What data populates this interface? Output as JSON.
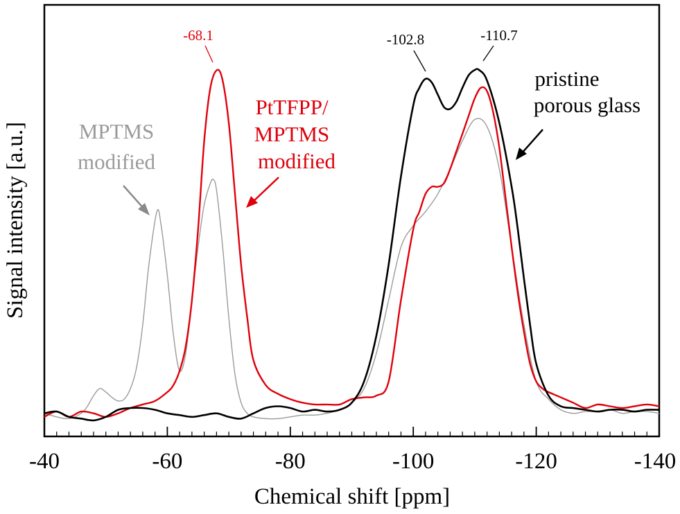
{
  "chart_data": {
    "type": "line",
    "xlabel": "Chemical shift [ppm]",
    "ylabel": "Signal intensity [a.u.]",
    "xlim": [
      -40,
      -140
    ],
    "ylim": [
      0,
      1.05
    ],
    "x_ticks": [
      "-40",
      "-60",
      "-80",
      "-100",
      "-120",
      "-140"
    ],
    "x_tick_values": [
      -40,
      -60,
      -80,
      -100,
      -120,
      -140
    ],
    "minor_tick_step": 2,
    "grid": false,
    "series": [
      {
        "name": "pristine porous glass",
        "color": "#000000",
        "x": [
          -40,
          -42,
          -44,
          -46,
          -48,
          -50,
          -52,
          -54,
          -56,
          -58,
          -60,
          -62,
          -64,
          -66,
          -68,
          -70,
          -72,
          -74,
          -76,
          -78,
          -80,
          -82,
          -84,
          -86,
          -88,
          -90,
          -92,
          -94,
          -96,
          -98,
          -100,
          -101,
          -102,
          -103,
          -104,
          -105,
          -106,
          -107,
          -108,
          -109,
          -110,
          -110.7,
          -112,
          -114,
          -116,
          -117,
          -118,
          -119,
          -120,
          -122,
          -124,
          -126,
          -128,
          -130,
          -132,
          -134,
          -136,
          -138,
          -140
        ],
        "values": [
          0.03,
          0.035,
          0.02,
          0.015,
          0.01,
          0.02,
          0.04,
          0.045,
          0.045,
          0.04,
          0.03,
          0.025,
          0.02,
          0.025,
          0.03,
          0.02,
          0.015,
          0.03,
          0.045,
          0.05,
          0.045,
          0.035,
          0.04,
          0.035,
          0.04,
          0.06,
          0.12,
          0.25,
          0.45,
          0.7,
          0.9,
          0.95,
          0.975,
          0.965,
          0.93,
          0.895,
          0.89,
          0.91,
          0.95,
          0.985,
          1.0,
          1.0,
          0.97,
          0.85,
          0.67,
          0.55,
          0.41,
          0.28,
          0.17,
          0.08,
          0.05,
          0.045,
          0.04,
          0.035,
          0.04,
          0.04,
          0.035,
          0.04,
          0.04
        ]
      },
      {
        "name": "PtTFPP/ MPTMS modified",
        "color": "#e0000b",
        "x": [
          -40,
          -42,
          -44,
          -46,
          -48,
          -50,
          -52,
          -54,
          -56,
          -58,
          -60,
          -61,
          -62,
          -63,
          -64,
          -65,
          -66,
          -67,
          -68.1,
          -69,
          -70,
          -71,
          -72,
          -73,
          -74,
          -76,
          -78,
          -80,
          -82,
          -84,
          -86,
          -88,
          -90,
          -92,
          -94,
          -96,
          -98,
          -100,
          -101,
          -102,
          -103,
          -104,
          -105,
          -106,
          -107,
          -108,
          -109,
          -110,
          -111,
          -112,
          -113,
          -114,
          -115,
          -116,
          -117,
          -118,
          -119,
          -120,
          -121,
          -122,
          -124,
          -126,
          -128,
          -130,
          -132,
          -134,
          -136,
          -138,
          -140
        ],
        "values": [
          0.02,
          0.035,
          0.02,
          0.035,
          0.03,
          0.02,
          0.03,
          0.045,
          0.055,
          0.065,
          0.09,
          0.11,
          0.15,
          0.22,
          0.35,
          0.55,
          0.8,
          0.95,
          1.0,
          0.97,
          0.85,
          0.65,
          0.45,
          0.3,
          0.18,
          0.11,
          0.085,
          0.07,
          0.06,
          0.055,
          0.055,
          0.055,
          0.07,
          0.075,
          0.08,
          0.12,
          0.35,
          0.55,
          0.6,
          0.65,
          0.67,
          0.67,
          0.68,
          0.72,
          0.77,
          0.82,
          0.87,
          0.92,
          0.95,
          0.94,
          0.88,
          0.78,
          0.64,
          0.5,
          0.37,
          0.26,
          0.17,
          0.12,
          0.1,
          0.09,
          0.075,
          0.06,
          0.045,
          0.055,
          0.05,
          0.045,
          0.05,
          0.055,
          0.05
        ]
      },
      {
        "name": "MPTMS modified",
        "color": "#9a9a9a",
        "x": [
          -40,
          -42,
          -44,
          -46,
          -47,
          -48,
          -49,
          -50,
          -51,
          -52,
          -53,
          -54,
          -55,
          -56,
          -57,
          -58.3,
          -59,
          -60,
          -61,
          -62,
          -63,
          -64,
          -65,
          -66,
          -67,
          -67.5,
          -68,
          -69,
          -70,
          -71,
          -72,
          -73,
          -74,
          -76,
          -78,
          -80,
          -82,
          -84,
          -86,
          -88,
          -90,
          -92,
          -94,
          -96,
          -98,
          -100,
          -102,
          -104,
          -106,
          -108,
          -110,
          -112,
          -114,
          -116,
          -118,
          -120,
          -122,
          -124,
          -126,
          -128,
          -130,
          -132,
          -134,
          -136,
          -138,
          -140
        ],
        "values": [
          0.03,
          0.02,
          0.015,
          0.03,
          0.05,
          0.08,
          0.1,
          0.09,
          0.075,
          0.065,
          0.07,
          0.1,
          0.16,
          0.28,
          0.45,
          0.6,
          0.56,
          0.42,
          0.25,
          0.15,
          0.2,
          0.35,
          0.5,
          0.62,
          0.68,
          0.69,
          0.66,
          0.5,
          0.3,
          0.14,
          0.06,
          0.03,
          0.02,
          0.015,
          0.015,
          0.02,
          0.025,
          0.025,
          0.03,
          0.04,
          0.06,
          0.1,
          0.2,
          0.35,
          0.5,
          0.56,
          0.6,
          0.65,
          0.72,
          0.8,
          0.86,
          0.84,
          0.72,
          0.5,
          0.28,
          0.12,
          0.07,
          0.04,
          0.03,
          0.035,
          0.035,
          0.04,
          0.03,
          0.035,
          0.035,
          0.03
        ]
      }
    ],
    "annotations": [
      {
        "text": "-68.1",
        "color": "#e0000b",
        "x": -68.1
      },
      {
        "text": "-102.8",
        "color": "#000000",
        "x": -102.8
      },
      {
        "text": "-110.7",
        "color": "#000000",
        "x": -110.7
      }
    ],
    "labels": {
      "mptms": {
        "line1": "MPTMS",
        "line2": "modified",
        "color": "#9a9a9a"
      },
      "pttfpp": {
        "line1": "PtTFPP/",
        "line2": "MPTMS",
        "line3": "modified",
        "color": "#e0000b"
      },
      "pristine": {
        "line1": "pristine",
        "line2": "porous glass",
        "color": "#000000"
      }
    }
  }
}
